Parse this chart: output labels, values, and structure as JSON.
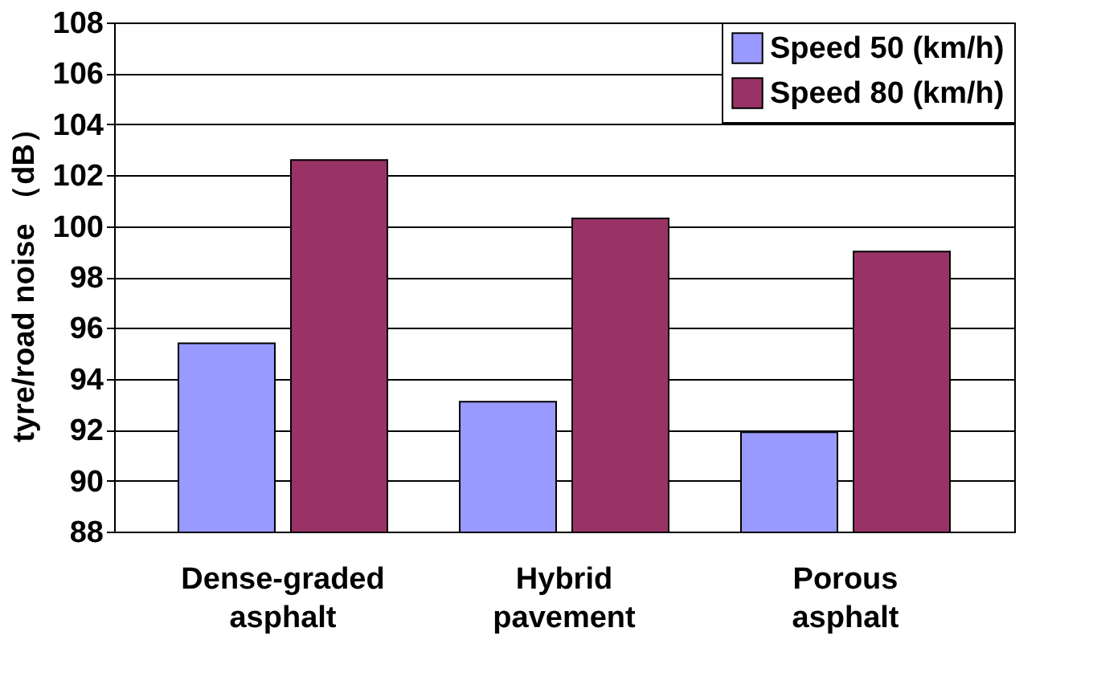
{
  "chart_data": {
    "type": "bar",
    "ylabel": "tyre/road noise （dB）",
    "categories": [
      "Dense-graded asphalt",
      "Hybrid pavement",
      "Porous asphalt"
    ],
    "series": [
      {
        "name": "Speed 50 (km/h)",
        "color": "#9999ff",
        "values": [
          95.4,
          93.1,
          91.9
        ]
      },
      {
        "name": "Speed 80 (km/h)",
        "color": "#993366",
        "values": [
          102.6,
          100.3,
          99.0
        ]
      }
    ],
    "ylim": [
      88,
      108
    ],
    "yticks": [
      88,
      90,
      92,
      94,
      96,
      98,
      100,
      102,
      104,
      106,
      108
    ],
    "grid": "y",
    "legend": "top right"
  }
}
